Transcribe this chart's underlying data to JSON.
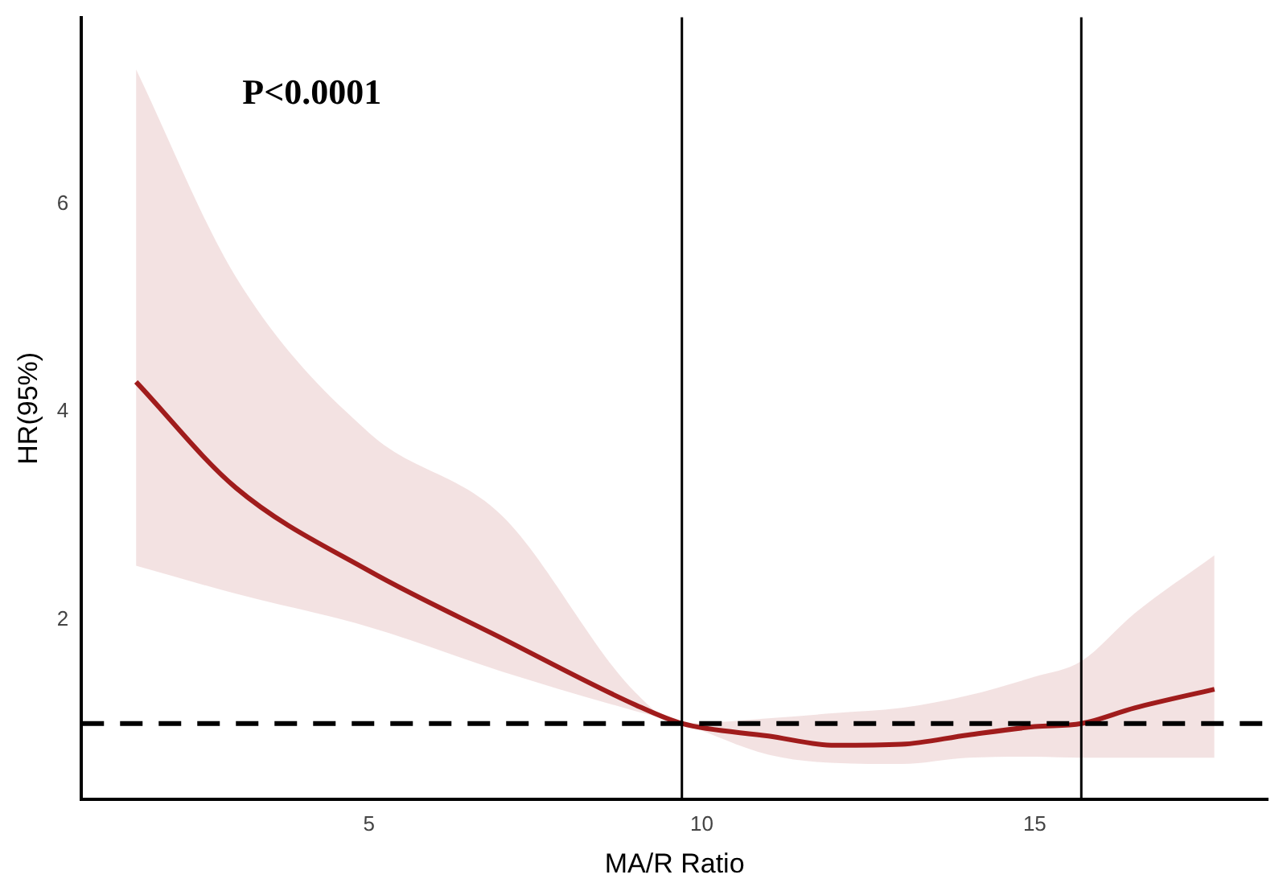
{
  "chart_data": {
    "type": "line",
    "xlabel": "MA/R Ratio",
    "ylabel": "HR(95%)",
    "annotations": [
      "P<0.0001"
    ],
    "x": [
      1.5,
      3,
      5,
      7,
      9,
      9.7,
      11,
      12,
      13,
      14,
      15,
      15.7,
      16.5,
      17.7
    ],
    "series": [
      {
        "color": "#a01c1c",
        "values": [
          4.29,
          3.27,
          2.47,
          1.82,
          1.18,
          1.0,
          0.88,
          0.79,
          0.8,
          0.89,
          0.97,
          1.0,
          1.15,
          1.33
        ],
        "lower": [
          2.52,
          2.25,
          1.93,
          1.5,
          1.12,
          1.0,
          0.7,
          0.62,
          0.61,
          0.67,
          0.68,
          0.67,
          0.67,
          0.67
        ],
        "upper": [
          7.3,
          5.3,
          3.8,
          3.0,
          1.3,
          1.0,
          1.05,
          1.1,
          1.15,
          1.27,
          1.45,
          1.6,
          2.06,
          2.62
        ]
      }
    ],
    "xlim": [
      0.68,
      18.5
    ],
    "xticks": [
      5,
      10,
      15
    ],
    "ylim": [
      0.27,
      7.8
    ],
    "yticks": [
      2,
      4,
      6
    ],
    "grid": false,
    "legend": false,
    "marker": "none",
    "line_style": "solid",
    "ref_lines": [
      {
        "axis": "x",
        "value": 9.7,
        "color": "#000000",
        "line_style": "solid"
      },
      {
        "axis": "x",
        "value": 15.7,
        "color": "#000000",
        "line_style": "solid"
      },
      {
        "axis": "y",
        "value": 1.0,
        "color": "#000000",
        "line_style": "dashed"
      }
    ]
  }
}
